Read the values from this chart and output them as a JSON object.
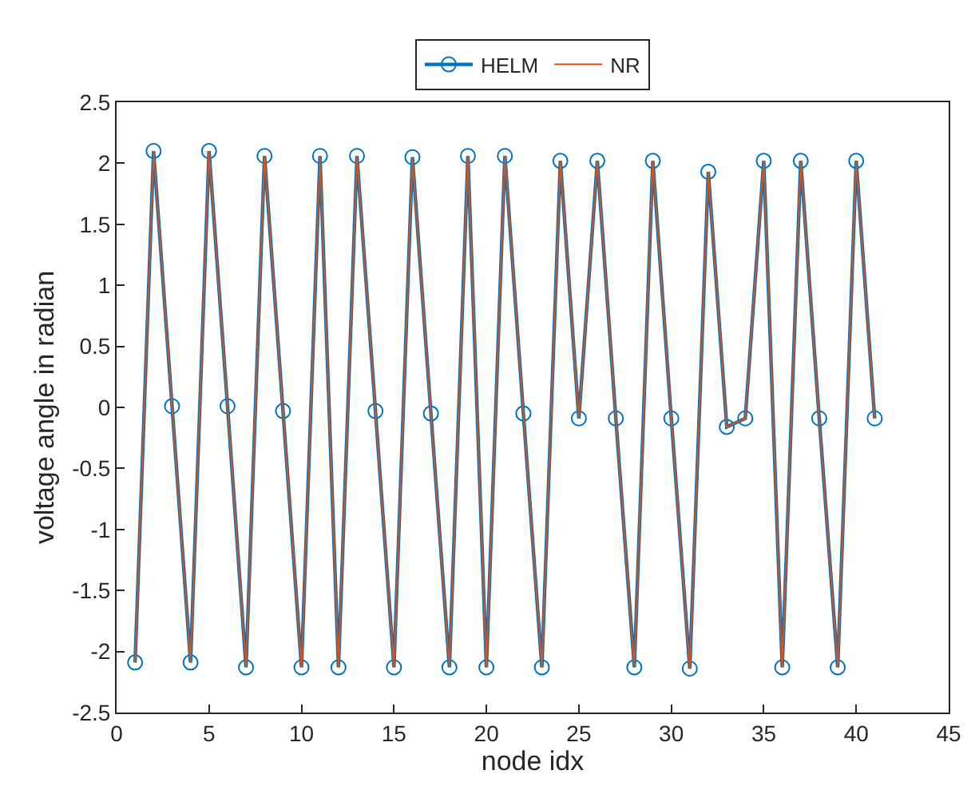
{
  "chart_data": {
    "type": "line",
    "xlabel": "node idx",
    "ylabel": "voltage angle in radian",
    "x": [
      1,
      2,
      3,
      4,
      5,
      6,
      7,
      8,
      9,
      10,
      11,
      12,
      13,
      14,
      15,
      16,
      17,
      18,
      19,
      20,
      21,
      22,
      23,
      24,
      25,
      26,
      27,
      28,
      29,
      30,
      31,
      32,
      33,
      34,
      35,
      36,
      37,
      38,
      39,
      40,
      41
    ],
    "series": [
      {
        "name": "HELM",
        "color": "#0072bd",
        "marker": "circle",
        "values": [
          -2.09,
          2.1,
          0.01,
          -2.09,
          2.1,
          0.01,
          -2.13,
          2.06,
          -0.03,
          -2.13,
          2.06,
          -2.13,
          2.06,
          -0.03,
          -2.13,
          2.05,
          -0.05,
          -2.13,
          2.06,
          -2.13,
          2.06,
          -0.05,
          -2.13,
          2.02,
          -0.09,
          2.02,
          -0.09,
          -2.13,
          2.02,
          -0.09,
          -2.14,
          1.93,
          -0.16,
          -0.09,
          2.02,
          -2.13,
          2.02,
          -0.09,
          -2.13,
          2.02,
          -0.09
        ]
      },
      {
        "name": "NR",
        "color": "#d95319",
        "marker": "none",
        "values": [
          -2.09,
          2.1,
          0.01,
          -2.09,
          2.1,
          0.01,
          -2.13,
          2.06,
          -0.03,
          -2.13,
          2.06,
          -2.13,
          2.06,
          -0.03,
          -2.13,
          2.05,
          -0.05,
          -2.13,
          2.06,
          -2.13,
          2.06,
          -0.05,
          -2.13,
          2.02,
          -0.09,
          2.02,
          -0.09,
          -2.13,
          2.02,
          -0.09,
          -2.14,
          1.93,
          -0.16,
          -0.09,
          2.02,
          -2.13,
          2.02,
          -0.09,
          -2.13,
          2.02,
          -0.09
        ]
      }
    ],
    "xlim": [
      0,
      45
    ],
    "xticks": [
      0,
      5,
      10,
      15,
      20,
      25,
      30,
      35,
      40,
      45
    ],
    "ylim": [
      -2.5,
      2.5
    ],
    "yticks": [
      -2.5,
      -2,
      -1.5,
      -1,
      -0.5,
      0,
      0.5,
      1,
      1.5,
      2,
      2.5
    ],
    "grid": false,
    "legend": "top",
    "line_style": "solid"
  }
}
